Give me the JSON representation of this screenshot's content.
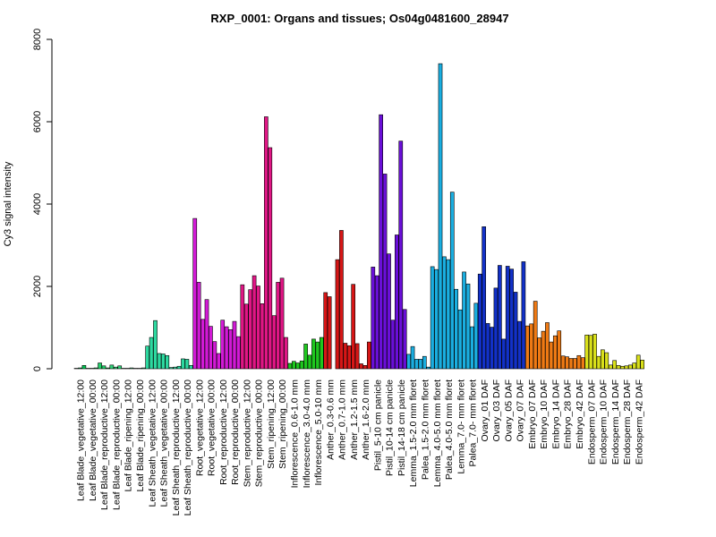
{
  "chart_data": {
    "type": "bar",
    "title": "RXP_0001: Organs and tissues; Os04g0481600_28947",
    "xlabel": "",
    "ylabel": "Cy3 signal intensity",
    "ylim": [
      0,
      8000
    ],
    "yticks": [
      0,
      2000,
      4000,
      6000,
      8000
    ],
    "grid": false,
    "legend": "none",
    "category_labels": [
      "Leaf Blade_vegetative_12:00",
      "Leaf Blade_vegetative_00:00",
      "Leaf Blade_reproductive_12:00",
      "Leaf Blade_reproductive_00:00",
      "Leaf Blade_ripening_12:00",
      "Leaf Blade_ripening_00:00",
      "Leaf Sheath_vegetative_12:00",
      "Leaf Sheath_vegetative_00:00",
      "Leaf Sheath_reproductive_12:00",
      "Leaf Sheath_reproductive_00:00",
      "Root_vegetative_12:00",
      "Root_vegetative_00:00",
      "Root_reproductive_12:00",
      "Root_reproductive_00:00",
      "Stem_reproductive_12:00",
      "Stem_reproductive_00:00",
      "Stem_ripening_12:00",
      "Stem_ripening_00:00",
      "Inflorescence_0.6-1.0 mm",
      "Inflorescence_3.0-4.0 mm",
      "Inflorescence_5.0-10 mm",
      "Anther_0.3-0.6 mm",
      "Anther_0.7-1.0 mm",
      "Anther_1.2-1.5 mm",
      "Anther_1.6-2.0 mm",
      "Pistil_5-10 cm panicle",
      "Pistil_10-14 cm panicle",
      "Pistil_14-18 cm panicle",
      "Lemma_1.5-2.0 mm floret",
      "Palea_1.5-2.0 mm floret",
      "Lemma_4.0-5.0 mm floret",
      "Palea_4.0-5.0 mm floret",
      "Lemma_7.0- mm floret",
      "Palea_7.0- mm floret",
      "Ovary_01 DAF",
      "Ovary_03 DAF",
      "Ovary_05 DAF",
      "Ovary_07 DAF",
      "Embryo_07 DAF",
      "Embryo_10 DAF",
      "Embryo_14 DAF",
      "Embryo_28 DAF",
      "Embryo_42 DAF",
      "Endosperm_07 DAF",
      "Endosperm_10 DAF",
      "Endosperm_14 DAF",
      "Endosperm_28 DAF",
      "Endosperm_42 DAF"
    ],
    "groups": [
      {
        "color": "#00c853",
        "values": [
          10,
          20,
          80
        ]
      },
      {
        "color": "#12cc5c",
        "values": [
          10,
          10,
          20
        ]
      },
      {
        "color": "#22d06a",
        "values": [
          140,
          70,
          20
        ]
      },
      {
        "color": "#30d478",
        "values": [
          90,
          40,
          70
        ]
      },
      {
        "color": "#3ed886",
        "values": [
          10,
          10,
          20
        ]
      },
      {
        "color": "#4bdb92",
        "values": [
          10,
          10,
          20
        ]
      },
      {
        "color": "#2dd9a0",
        "values": [
          550,
          760,
          1170
        ]
      },
      {
        "color": "#2dd9a0",
        "values": [
          370,
          360,
          320
        ]
      },
      {
        "color": "#2dd9a0",
        "values": [
          30,
          40,
          60
        ]
      },
      {
        "color": "#2dd9a0",
        "values": [
          240,
          230,
          80
        ]
      },
      {
        "color": "#d21ad6",
        "values": [
          3650,
          2100,
          1200
        ]
      },
      {
        "color": "#d21ad6",
        "values": [
          1680,
          1030,
          660
        ]
      },
      {
        "color": "#d21ad6",
        "values": [
          370,
          1180,
          1020
        ]
      },
      {
        "color": "#d21ad6",
        "values": [
          950,
          1150,
          780
        ]
      },
      {
        "color": "#e01685",
        "values": [
          2040,
          1570,
          1920
        ]
      },
      {
        "color": "#e01685",
        "values": [
          2260,
          2010,
          1580
        ]
      },
      {
        "color": "#e01685",
        "values": [
          6120,
          5370,
          1290
        ]
      },
      {
        "color": "#e01685",
        "values": [
          2100,
          2200,
          760
        ]
      },
      {
        "color": "#1ec81e",
        "values": [
          130,
          180,
          140
        ]
      },
      {
        "color": "#1ec81e",
        "values": [
          190,
          600,
          330
        ]
      },
      {
        "color": "#1ec81e",
        "values": [
          720,
          650,
          760
        ]
      },
      {
        "color": "#d61616",
        "values": [
          1850,
          1750,
          0
        ]
      },
      {
        "color": "#d61616",
        "values": [
          2650,
          3360,
          620
        ]
      },
      {
        "color": "#d61616",
        "values": [
          560,
          2050,
          610
        ]
      },
      {
        "color": "#d61616",
        "values": [
          120,
          80,
          650
        ]
      },
      {
        "color": "#6a0fd8",
        "values": [
          2470,
          2260,
          6170
        ]
      },
      {
        "color": "#6a0fd8",
        "values": [
          4730,
          2790,
          1180
        ]
      },
      {
        "color": "#6a0fd8",
        "values": [
          3250,
          5530,
          1440
        ]
      },
      {
        "color": "#1aaee0",
        "values": [
          350,
          540,
          230
        ]
      },
      {
        "color": "#1aaee0",
        "values": [
          230,
          300,
          40
        ]
      },
      {
        "color": "#1aaee0",
        "values": [
          2480,
          2410,
          7410
        ]
      },
      {
        "color": "#1aaee0",
        "values": [
          2720,
          2650,
          4290
        ]
      },
      {
        "color": "#1aaee0",
        "values": [
          1930,
          1430,
          2350
        ]
      },
      {
        "color": "#1aaee0",
        "values": [
          2060,
          1020,
          1590
        ]
      },
      {
        "color": "#1231c8",
        "values": [
          2300,
          3450,
          1100
        ]
      },
      {
        "color": "#1231c8",
        "values": [
          1010,
          1960,
          2510
        ]
      },
      {
        "color": "#1231c8",
        "values": [
          720,
          2490,
          2420
        ]
      },
      {
        "color": "#1231c8",
        "values": [
          1860,
          1150,
          2600
        ]
      },
      {
        "color": "#ef7a14",
        "values": [
          1040,
          1090,
          1640
        ]
      },
      {
        "color": "#ef7a14",
        "values": [
          750,
          910,
          1120
        ]
      },
      {
        "color": "#ef7a14",
        "values": [
          650,
          800,
          920
        ]
      },
      {
        "color": "#ef7a14",
        "values": [
          310,
          290,
          250
        ]
      },
      {
        "color": "#ef7a14",
        "values": [
          250,
          320,
          270
        ]
      },
      {
        "color": "#d9e01a",
        "values": [
          820,
          810,
          840
        ]
      },
      {
        "color": "#d9e01a",
        "values": [
          300,
          460,
          390
        ]
      },
      {
        "color": "#d9e01a",
        "values": [
          90,
          200,
          80
        ]
      },
      {
        "color": "#d9e01a",
        "values": [
          60,
          70,
          90
        ]
      },
      {
        "color": "#d9e01a",
        "values": [
          140,
          330,
          210
        ]
      }
    ]
  }
}
